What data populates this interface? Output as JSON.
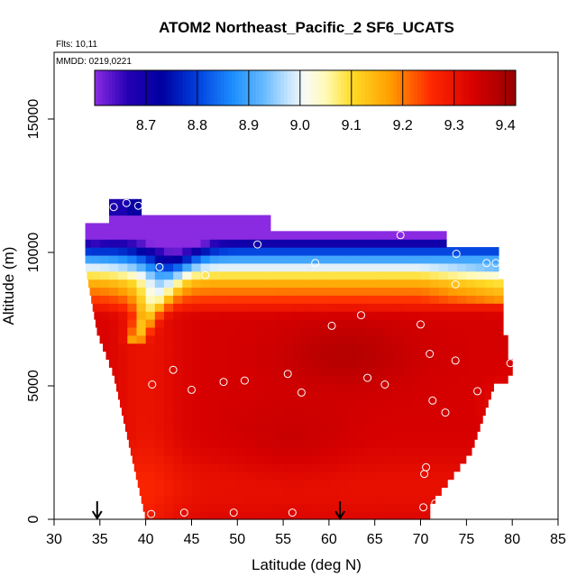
{
  "chart_data": {
    "type": "heatmap",
    "title": "ATOM2 Northeast_Pacific_2 SF6_UCATS",
    "subtitle_flights": "Flts: 10,11",
    "subtitle_dates": "MMDD: 0219,0221",
    "xlabel": "Latitude (deg N)",
    "ylabel": "Altitude (m)",
    "xlim": [
      30,
      85
    ],
    "ylim": [
      0,
      17500
    ],
    "xticks": [
      "30",
      "35",
      "40",
      "45",
      "50",
      "55",
      "60",
      "65",
      "70",
      "75",
      "80",
      "85"
    ],
    "yticks": [
      "0",
      "5000",
      "10000",
      "15000"
    ],
    "colorbar": {
      "range": [
        8.6,
        9.42
      ],
      "ticks": [
        "8.7",
        "8.8",
        "8.9",
        "9.0",
        "9.1",
        "9.2",
        "9.3",
        "9.4"
      ]
    },
    "arrows_lat": [
      34.7,
      61.2
    ],
    "samples": [
      [
        36.5,
        11700
      ],
      [
        37.9,
        11850
      ],
      [
        39.2,
        11750
      ],
      [
        41.5,
        9450
      ],
      [
        46.5,
        9150
      ],
      [
        52.2,
        10300
      ],
      [
        58.5,
        9600
      ],
      [
        67.8,
        10650
      ],
      [
        73.9,
        9950
      ],
      [
        77.2,
        9600
      ],
      [
        78.2,
        9600
      ],
      [
        73.8,
        8800
      ],
      [
        63.5,
        7650
      ],
      [
        60.3,
        7250
      ],
      [
        70.0,
        7300
      ],
      [
        71.0,
        6200
      ],
      [
        73.8,
        5950
      ],
      [
        79.8,
        5850
      ],
      [
        43.0,
        5600
      ],
      [
        55.5,
        5450
      ],
      [
        40.7,
        5050
      ],
      [
        48.5,
        5150
      ],
      [
        50.8,
        5200
      ],
      [
        45.0,
        4850
      ],
      [
        57.0,
        4750
      ],
      [
        64.2,
        5300
      ],
      [
        66.1,
        5050
      ],
      [
        76.2,
        4800
      ],
      [
        71.3,
        4450
      ],
      [
        72.7,
        4000
      ],
      [
        70.6,
        1950
      ],
      [
        70.4,
        1700
      ],
      [
        71.6,
        600
      ],
      [
        70.3,
        450
      ],
      [
        40.6,
        200
      ],
      [
        44.2,
        250
      ],
      [
        49.6,
        250
      ],
      [
        56.0,
        250
      ]
    ]
  }
}
